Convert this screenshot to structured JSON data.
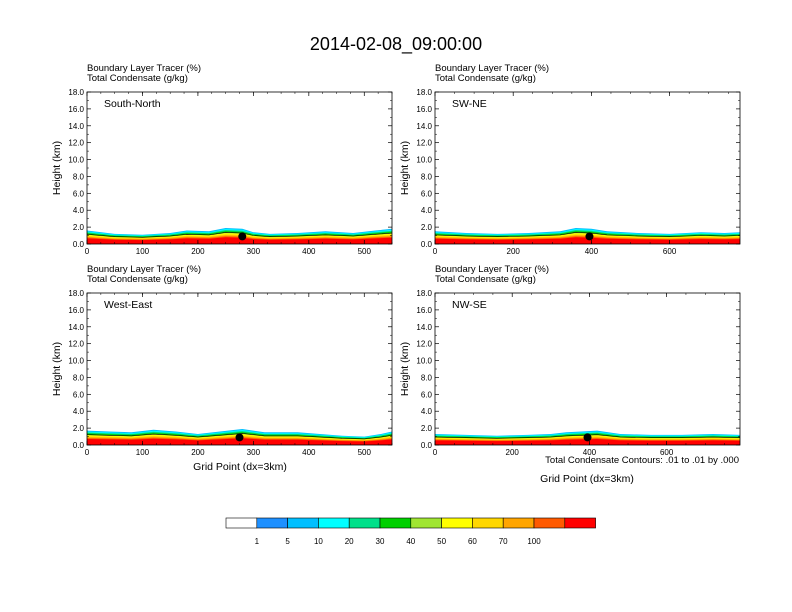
{
  "main_title": "2014-02-08_09:00:00",
  "panel_header": {
    "line1_name": "Boundary Layer Tracer",
    "line1_unit": "(%)",
    "line2_name": "Total Condensate",
    "line2_unit": "(g/kg)"
  },
  "axis": {
    "ylabel": "Height (km)",
    "xlabel": "Grid Point (dx=3km)",
    "ylim": [
      0,
      18
    ],
    "yticks": [
      "0.0",
      "2.0",
      "4.0",
      "6.0",
      "8.0",
      "10.0",
      "12.0",
      "14.0",
      "16.0",
      "18.0"
    ]
  },
  "contour_note": "Total Condensate Contours: .01 to .01 by .000",
  "colorbar": {
    "levels": [
      "1",
      "5",
      "10",
      "20",
      "30",
      "40",
      "50",
      "60",
      "70",
      "100"
    ],
    "colors": [
      "#ffffff",
      "#1e90ff",
      "#00bfff",
      "#00ffff",
      "#00e08a",
      "#00d000",
      "#a0e632",
      "#ffff00",
      "#ffd700",
      "#ffa500",
      "#ff5a00",
      "#ff0000"
    ]
  },
  "chart_data": [
    {
      "type": "heatmap",
      "panel_label": "South-North",
      "xlim": [
        0,
        550
      ],
      "xticks": [
        0,
        100,
        200,
        300,
        400,
        500
      ],
      "ylim": [
        0,
        18
      ],
      "marker": {
        "x": 280,
        "y": 0.9
      },
      "profile": {
        "x": [
          0,
          50,
          100,
          150,
          180,
          220,
          250,
          280,
          300,
          330,
          380,
          430,
          480,
          520,
          550
        ],
        "top_km": [
          1.6,
          1.2,
          1.1,
          1.3,
          1.6,
          1.5,
          1.9,
          1.8,
          1.4,
          1.2,
          1.3,
          1.5,
          1.3,
          1.6,
          1.8
        ]
      }
    },
    {
      "type": "heatmap",
      "panel_label": "SW-NE",
      "xlim": [
        0,
        780
      ],
      "xticks": [
        0,
        200,
        400,
        600
      ],
      "ylim": [
        0,
        18
      ],
      "marker": {
        "x": 395,
        "y": 0.9
      },
      "profile": {
        "x": [
          0,
          80,
          160,
          240,
          320,
          360,
          400,
          440,
          520,
          600,
          680,
          740,
          780
        ],
        "top_km": [
          1.5,
          1.3,
          1.2,
          1.3,
          1.5,
          1.9,
          1.8,
          1.5,
          1.3,
          1.2,
          1.4,
          1.3,
          1.4
        ]
      }
    },
    {
      "type": "heatmap",
      "panel_label": "West-East",
      "xlim": [
        0,
        550
      ],
      "xticks": [
        0,
        100,
        200,
        300,
        400,
        500
      ],
      "ylim": [
        0,
        18
      ],
      "marker": {
        "x": 275,
        "y": 0.9
      },
      "profile": {
        "x": [
          0,
          40,
          80,
          120,
          160,
          200,
          240,
          280,
          320,
          380,
          420,
          460,
          500,
          530,
          550
        ],
        "top_km": [
          1.7,
          1.6,
          1.5,
          1.8,
          1.6,
          1.3,
          1.6,
          1.9,
          1.5,
          1.5,
          1.3,
          1.1,
          1.0,
          1.3,
          1.6
        ]
      }
    },
    {
      "type": "heatmap",
      "panel_label": "NW-SE",
      "xlim": [
        0,
        790
      ],
      "xticks": [
        0,
        200,
        400,
        600
      ],
      "ylim": [
        0,
        18
      ],
      "marker": {
        "x": 395,
        "y": 0.9
      },
      "profile": {
        "x": [
          0,
          80,
          160,
          240,
          300,
          340,
          380,
          420,
          480,
          560,
          640,
          720,
          790
        ],
        "top_km": [
          1.3,
          1.2,
          1.1,
          1.2,
          1.3,
          1.5,
          1.6,
          1.7,
          1.3,
          1.2,
          1.2,
          1.3,
          1.2
        ]
      }
    }
  ]
}
